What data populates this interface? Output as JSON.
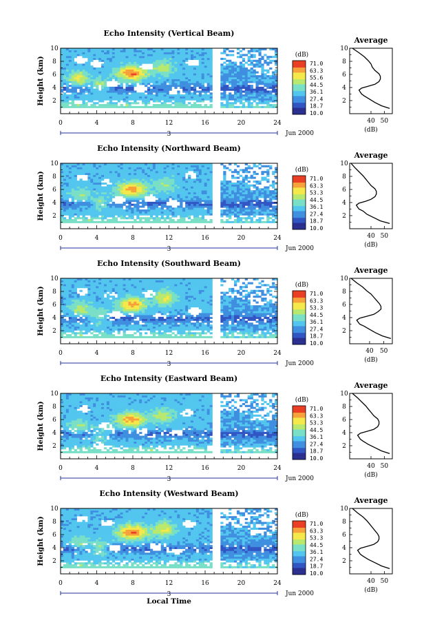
{
  "chart_data": [
    {
      "type": "heatmap",
      "title": "Echo Intensity (Vertical Beam)",
      "ylabel": "Height (km)",
      "xlim": [
        0,
        24
      ],
      "ylim": [
        0,
        10
      ],
      "x_ticks": [
        0,
        4,
        8,
        12,
        16,
        20,
        24
      ],
      "y_ticks": [
        2,
        4,
        6,
        8,
        10
      ],
      "date_label": "3",
      "month_label": "Jun 2000",
      "colorbar": {
        "label": "(dB)",
        "ticks": [
          "71.0",
          "63.3",
          "55.6",
          "44.5",
          "36.1",
          "27.4",
          "18.7",
          "10.0"
        ]
      },
      "cores": [
        [
          2.0,
          5.4,
          1.1,
          10
        ],
        [
          4.4,
          4.2,
          1.0,
          9
        ],
        [
          7.9,
          6.2,
          1.6,
          13
        ],
        [
          11.3,
          7.0,
          1.2,
          9
        ]
      ],
      "gaps": [
        [
          2.2,
          8.2
        ],
        [
          4.0,
          7.6
        ],
        [
          9.5,
          7.2
        ],
        [
          12.8,
          3.4
        ],
        [
          14.6,
          7.8
        ],
        [
          8.8,
          3.8
        ],
        [
          5.8,
          4.6
        ]
      ],
      "average": {
        "title": "Average",
        "xlabel": "(dB)",
        "xlim": [
          24,
          56
        ],
        "x_ticks": [
          40,
          50
        ],
        "heights": [
          0.8,
          1.2,
          1.7,
          2.2,
          2.7,
          3.0,
          3.3,
          3.6,
          3.9,
          4.2,
          4.5,
          4.9,
          5.3,
          5.7,
          6.1,
          6.6,
          7.1,
          7.6,
          8.1,
          8.7,
          9.3,
          10.0
        ],
        "values": [
          54,
          48,
          43,
          39,
          35,
          33,
          32,
          31,
          33,
          38,
          43,
          46,
          47,
          47,
          46,
          43,
          41,
          40,
          38,
          35,
          31,
          26
        ]
      }
    },
    {
      "type": "heatmap",
      "title": "Echo Intensity (Northward Beam)",
      "ylabel": "Height (km)",
      "xlim": [
        0,
        24
      ],
      "ylim": [
        0,
        10
      ],
      "x_ticks": [
        0,
        4,
        8,
        12,
        16,
        20,
        24
      ],
      "y_ticks": [
        2,
        4,
        6,
        8,
        10
      ],
      "date_label": "3",
      "month_label": "Jun 2000",
      "colorbar": {
        "label": "(dB)",
        "ticks": [
          "71.0",
          "63.3",
          "53.3",
          "44.5",
          "36.1",
          "27.4",
          "18.7",
          "10.0"
        ]
      },
      "cores": [
        [
          2.2,
          5.1,
          1.1,
          8
        ],
        [
          4.4,
          3.9,
          1.0,
          9
        ],
        [
          7.9,
          6.0,
          1.6,
          12
        ],
        [
          11.5,
          6.8,
          1.2,
          8
        ]
      ],
      "gaps": [
        [
          2.5,
          7.8
        ],
        [
          6.5,
          4.4
        ],
        [
          10.0,
          4.6
        ],
        [
          14.4,
          8.2
        ],
        [
          5.0,
          7.0
        ],
        [
          12.5,
          3.8
        ]
      ],
      "average": {
        "title": "Average",
        "xlabel": "(dB)",
        "xlim": [
          24,
          56
        ],
        "x_ticks": [
          40,
          50
        ],
        "heights": [
          0.8,
          1.2,
          1.7,
          2.2,
          2.7,
          3.0,
          3.3,
          3.6,
          3.9,
          4.2,
          4.5,
          4.9,
          5.3,
          5.7,
          6.1,
          6.6,
          7.1,
          7.6,
          8.1,
          8.7,
          9.3,
          10.0
        ],
        "values": [
          54,
          47,
          42,
          37,
          34,
          31,
          30,
          29,
          31,
          36,
          40,
          43,
          44,
          44,
          43,
          40,
          38,
          36,
          34,
          31,
          28,
          25
        ]
      }
    },
    {
      "type": "heatmap",
      "title": "Echo Intensity (Southward Beam)",
      "ylabel": "Height (km)",
      "xlim": [
        0,
        24
      ],
      "ylim": [
        0,
        10
      ],
      "x_ticks": [
        0,
        4,
        8,
        12,
        16,
        20,
        24
      ],
      "y_ticks": [
        2,
        4,
        6,
        8,
        10
      ],
      "date_label": "3",
      "month_label": "Jun 2000",
      "colorbar": {
        "label": "(dB)",
        "ticks": [
          "71.0",
          "63.3",
          "53.3",
          "44.5",
          "36.1",
          "27.4",
          "18.7",
          "10.0"
        ]
      },
      "cores": [
        [
          2.2,
          5.3,
          1.1,
          9
        ],
        [
          4.3,
          4.1,
          1.0,
          9
        ],
        [
          7.9,
          6.0,
          1.5,
          12
        ],
        [
          11.6,
          7.0,
          1.2,
          10
        ]
      ],
      "gaps": [
        [
          2.4,
          8.0
        ],
        [
          5.5,
          7.4
        ],
        [
          9.8,
          7.6
        ],
        [
          6.2,
          4.4
        ],
        [
          11.0,
          4.2
        ],
        [
          14.8,
          5.0
        ]
      ],
      "average": {
        "title": "Average",
        "xlabel": "(dB)",
        "xlim": [
          26,
          56
        ],
        "x_ticks": [
          40,
          50
        ],
        "heights": [
          0.8,
          1.2,
          1.7,
          2.2,
          2.7,
          3.0,
          3.3,
          3.6,
          3.9,
          4.2,
          4.5,
          4.9,
          5.3,
          5.7,
          6.1,
          6.6,
          7.1,
          7.6,
          8.1,
          8.7,
          9.3,
          10.0
        ],
        "values": [
          55,
          49,
          44,
          40,
          36,
          33,
          32,
          31,
          33,
          38,
          43,
          46,
          48,
          48,
          47,
          45,
          43,
          41,
          38,
          35,
          31,
          27
        ]
      }
    },
    {
      "type": "heatmap",
      "title": "Echo Intensity (Eastward Beam)",
      "ylabel": "Height (km)",
      "xlim": [
        0,
        24
      ],
      "ylim": [
        0,
        10
      ],
      "x_ticks": [
        0,
        4,
        8,
        12,
        16,
        20,
        24
      ],
      "y_ticks": [
        2,
        4,
        6,
        8,
        10
      ],
      "date_label": "3",
      "month_label": "Jun 2000",
      "colorbar": {
        "label": "(dB)",
        "ticks": [
          "71.0",
          "63.3",
          "53.3",
          "44.5",
          "36.1",
          "27.4",
          "18.7",
          "10.0"
        ]
      },
      "cores": [
        [
          2.0,
          5.0,
          1.1,
          8
        ],
        [
          4.5,
          3.8,
          1.0,
          8
        ],
        [
          7.8,
          6.0,
          1.6,
          12
        ],
        [
          11.4,
          6.6,
          1.2,
          9
        ]
      ],
      "gaps": [
        [
          2.6,
          7.6
        ],
        [
          5.0,
          5.0
        ],
        [
          9.0,
          4.2
        ],
        [
          12.8,
          4.0
        ],
        [
          14.0,
          7.0
        ],
        [
          4.3,
          2.0
        ]
      ],
      "average": {
        "title": "Average",
        "xlabel": "(dB)",
        "xlim": [
          24,
          56
        ],
        "x_ticks": [
          40,
          50
        ],
        "heights": [
          0.8,
          1.2,
          1.7,
          2.2,
          2.7,
          3.0,
          3.3,
          3.6,
          3.9,
          4.2,
          4.5,
          4.9,
          5.3,
          5.7,
          6.1,
          6.6,
          7.1,
          7.6,
          8.1,
          8.7,
          9.3,
          10.0
        ],
        "values": [
          54,
          48,
          43,
          38,
          34,
          32,
          31,
          30,
          32,
          37,
          42,
          45,
          46,
          46,
          45,
          42,
          40,
          38,
          36,
          33,
          30,
          26
        ]
      }
    },
    {
      "type": "heatmap",
      "title": "Echo Intensity (Westward Beam)",
      "ylabel": "Height (km)",
      "xlabel": "Local Time",
      "xlim": [
        0,
        24
      ],
      "ylim": [
        0,
        10
      ],
      "x_ticks": [
        0,
        4,
        8,
        12,
        16,
        20,
        24
      ],
      "y_ticks": [
        2,
        4,
        6,
        8,
        10
      ],
      "date_label": "3",
      "month_label": "Jun 2000",
      "colorbar": {
        "label": "(dB)",
        "ticks": [
          "71.0",
          "63.3",
          "53.3",
          "44.5",
          "36.1",
          "27.4",
          "18.7",
          "10.0"
        ]
      },
      "cores": [
        [
          2.1,
          4.8,
          1.1,
          8
        ],
        [
          4.3,
          4.0,
          1.0,
          9
        ],
        [
          7.9,
          6.4,
          1.6,
          13
        ],
        [
          11.4,
          6.8,
          1.2,
          10
        ]
      ],
      "gaps": [
        [
          2.3,
          8.4
        ],
        [
          6.0,
          4.0
        ],
        [
          10.5,
          4.2
        ],
        [
          14.2,
          7.6
        ],
        [
          5.2,
          7.8
        ],
        [
          13.0,
          3.6
        ]
      ],
      "average": {
        "title": "Average",
        "xlabel": "(dB)",
        "xlim": [
          24,
          56
        ],
        "x_ticks": [
          40,
          50
        ],
        "heights": [
          0.8,
          1.2,
          1.7,
          2.2,
          2.7,
          3.0,
          3.3,
          3.6,
          3.9,
          4.2,
          4.5,
          4.9,
          5.3,
          5.7,
          6.1,
          6.6,
          7.1,
          7.6,
          8.1,
          8.7,
          9.3,
          10.0
        ],
        "values": [
          54,
          48,
          43,
          38,
          34,
          32,
          31,
          30,
          32,
          37,
          42,
          45,
          46,
          46,
          45,
          43,
          41,
          39,
          37,
          34,
          30,
          26
        ]
      }
    }
  ]
}
